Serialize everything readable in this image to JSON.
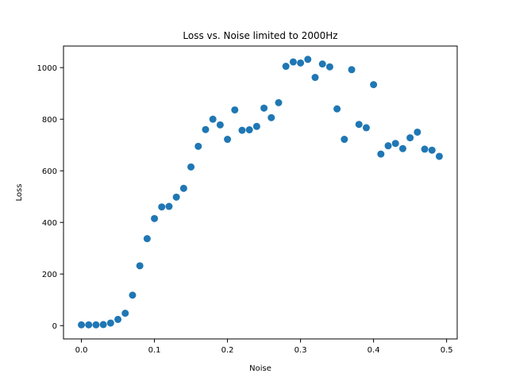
{
  "chart_data": {
    "type": "scatter",
    "title": "Loss vs. Noise limited to 2000Hz",
    "xlabel": "Noise",
    "ylabel": "Loss",
    "xlim": [
      -0.0245,
      0.5145
    ],
    "ylim": [
      -51.6,
      1083.6
    ],
    "x_ticks": [
      0.0,
      0.1,
      0.2,
      0.3,
      0.4,
      0.5
    ],
    "x_tick_labels": [
      "0.0",
      "0.1",
      "0.2",
      "0.3",
      "0.4",
      "0.5"
    ],
    "y_ticks": [
      0,
      200,
      400,
      600,
      800,
      1000
    ],
    "y_tick_labels": [
      "0",
      "200",
      "400",
      "600",
      "800",
      "1000"
    ],
    "grid": false,
    "marker_color": "#1f77b4",
    "series": [
      {
        "x": [
          0.0,
          0.01,
          0.02,
          0.03,
          0.04,
          0.05,
          0.06,
          0.07,
          0.08,
          0.09,
          0.1,
          0.11,
          0.12,
          0.13,
          0.14,
          0.15,
          0.16,
          0.17,
          0.18,
          0.19,
          0.2,
          0.21,
          0.22,
          0.23,
          0.24,
          0.25,
          0.26,
          0.27,
          0.28,
          0.29,
          0.3,
          0.31,
          0.32,
          0.33,
          0.34,
          0.35,
          0.36,
          0.37,
          0.38,
          0.39,
          0.4,
          0.41,
          0.42,
          0.43,
          0.44,
          0.45,
          0.46,
          0.47,
          0.48,
          0.49
        ],
        "y": [
          3,
          3,
          3,
          4,
          10,
          24,
          48,
          118,
          232,
          337,
          415,
          460,
          462,
          498,
          532,
          615,
          695,
          760,
          800,
          778,
          722,
          836,
          757,
          759,
          772,
          843,
          806,
          864,
          1005,
          1022,
          1018,
          1032,
          962,
          1014,
          1003,
          840,
          722,
          992,
          780,
          767,
          934,
          665,
          697,
          706,
          686,
          728,
          750,
          684,
          680,
          656
        ]
      }
    ]
  }
}
